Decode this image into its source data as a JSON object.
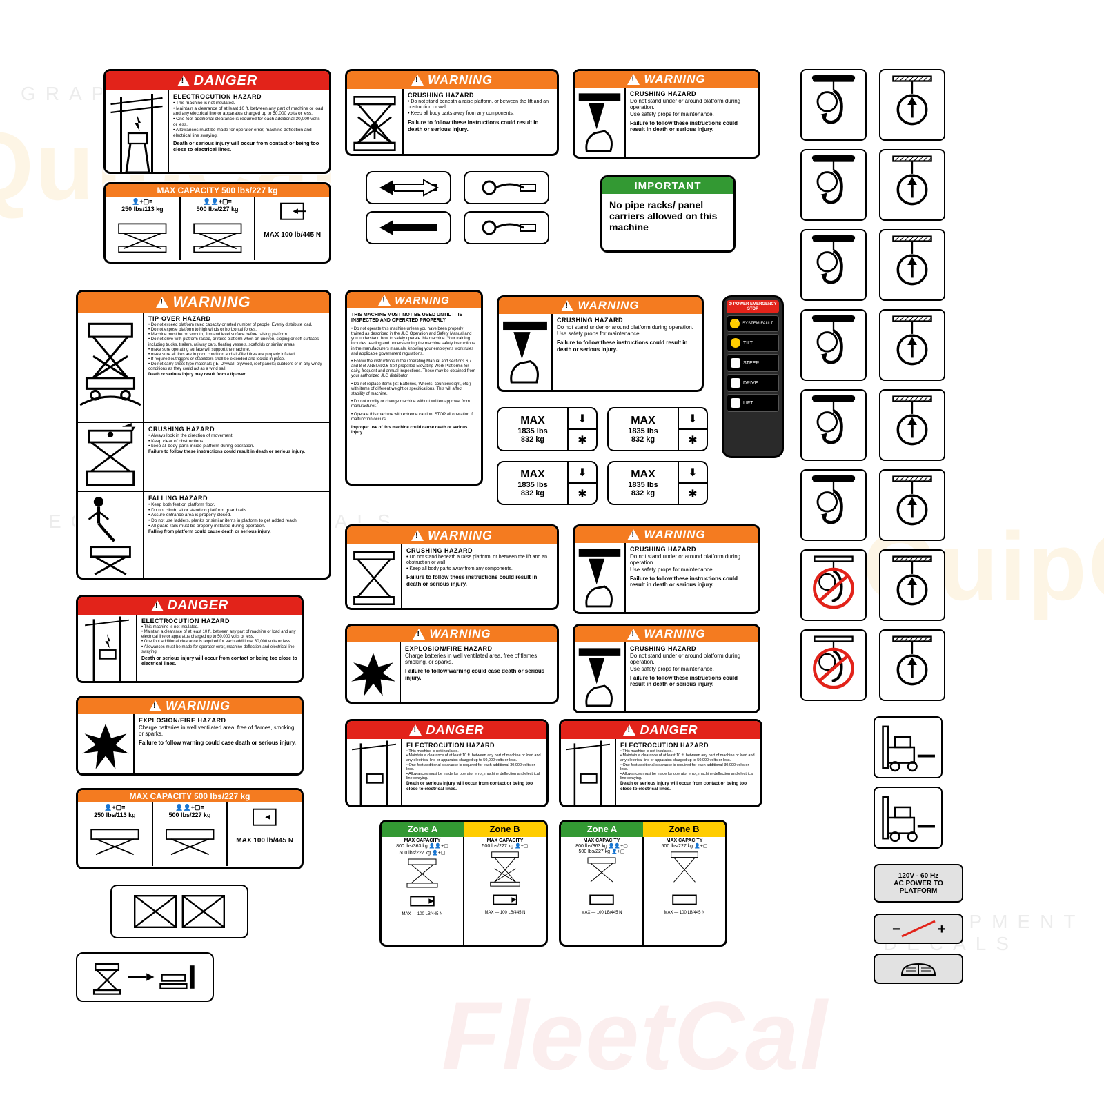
{
  "colors": {
    "danger": "#e2231a",
    "warning": "#f47b20",
    "important": "#339933",
    "yellow": "#ffcc00",
    "black": "#000000",
    "white": "#ffffff",
    "grey": "#e2e2e2"
  },
  "watermark": {
    "brand": "QuipCal",
    "sub1": "EQUIPMENT DECALS",
    "sub2": "GRAPHICALS",
    "alt": "FleetCal"
  },
  "headers": {
    "danger": "DANGER",
    "warning": "WARNING",
    "important": "IMPORTANT"
  },
  "danger_electro": {
    "title": "ELECTROCUTION HAZARD",
    "bullets": [
      "This machine is not insulated.",
      "Maintain a clearance of at least 10 ft. between any part of machine or load and any electrical line or apparatus charged up to 50,000 volts or less.",
      "One foot additional clearance is required for each additional 30,000 volts or less.",
      "Allowances must be made for operator error, machine deflection and electrical line swaying."
    ],
    "footer": "Death or serious injury will occur from contact or being too close to electrical lines."
  },
  "warning_crush_lift": {
    "title": "CRUSHING HAZARD",
    "bullets": [
      "Do not stand beneath a raise platform, or between the lift and an obstruction or wall.",
      "Keep all body parts away from any components."
    ],
    "footer": "Failure to follow these instructions could result in death or serious injury."
  },
  "warning_crush_platform": {
    "title": "CRUSHING HAZARD",
    "lines": [
      "Do not stand under or around platform during operation.",
      "Use safety props for maintenance."
    ],
    "footer": "Failure to follow these instructions could result in death or serious injury."
  },
  "important_pipe": {
    "text": "No pipe racks/ panel carriers allowed on this machine"
  },
  "max_capacity": {
    "bar": "MAX CAPACITY 500 lbs/227 kg",
    "cells": [
      "250 lbs/113 kg",
      "500 lbs/227 kg",
      "MAX 100 lb/445 N"
    ]
  },
  "big_warning": {
    "tip_title": "TIP-OVER HAZARD",
    "tip_bullets": [
      "Do not exceed platform rated capacity or rated number of people. Evenly distribute load.",
      "Do not expose platform to high winds or horizontal forces.",
      "Machine must be on smooth, firm and level surface before raising platform.",
      "Do not drive with platform raised, or raise platform when on uneven, sloping or soft surfaces including trucks, trailers, railway cars, floating vessels, scaffolds or similar areas.",
      "make sure operating surface will support the machine.",
      "make sure all tires are in good condition and air-filled tires are properly inflated.",
      "If required outriggers or stabilizers shall be extended and locked in place.",
      "Do not carry sheet-type materials (IE: Drywall, plywood, roof panels) outdoors or in any windy conditions as they could act as a wind sail."
    ],
    "tip_footer": "Death or serious injury may result from a tip-over.",
    "crush_title": "CRUSHING HAZARD",
    "crush_bullets": [
      "Always look in the direction of movement.",
      "Keep clear of obstructions.",
      "keep all body parts inside platform during operation."
    ],
    "crush_footer": "Failure to follow these instructions could result in death or serious injury.",
    "fall_title": "FALLING HAZARD",
    "fall_bullets": [
      "Keep both feet on platform floor.",
      "Do not climb, sit or stand on platform guard rails.",
      "Assure entrance area is properly closed.",
      "Do not use ladders, planks or similar items in platform to get added reach.",
      "All guard rails must be properly installed during operation."
    ],
    "fall_footer": "Falling from platform could cause death or serious injury."
  },
  "warning_notuse": {
    "title": "THIS MACHINE MUST NOT BE USED UNTIL IT IS INSPECTED AND OPERATED PROPERLY",
    "footer": "Improper use of this machine could cause death or serious injury."
  },
  "warning_explosion": {
    "title": "EXPLOSION/FIRE HAZARD",
    "line": "Charge batteries in well ventilated area, free of flames, smoking, or sparks.",
    "footer": "Failure to follow warning could case death or serious injury."
  },
  "max_weight": {
    "label": "MAX",
    "lbs": "1835 lbs",
    "kg": "832 kg"
  },
  "zone": {
    "a": "Zone A",
    "b": "Zone B",
    "cap_title": "MAX CAPACITY",
    "a_cap": "800 lbs/363 kg",
    "b_cap": "500 lbs/227 kg",
    "foot": "MAX — 100 LB/445 N"
  },
  "control_panel": {
    "items": [
      "POWER EMERGENCY STOP",
      "SYSTEM FAULT",
      "TILT",
      "STEER",
      "DRIVE",
      "LIFT"
    ]
  },
  "power_label": "120V - 60 Hz\nAC POWER TO\nPLATFORM",
  "battery": {
    "neg": "−",
    "pos": "+"
  }
}
